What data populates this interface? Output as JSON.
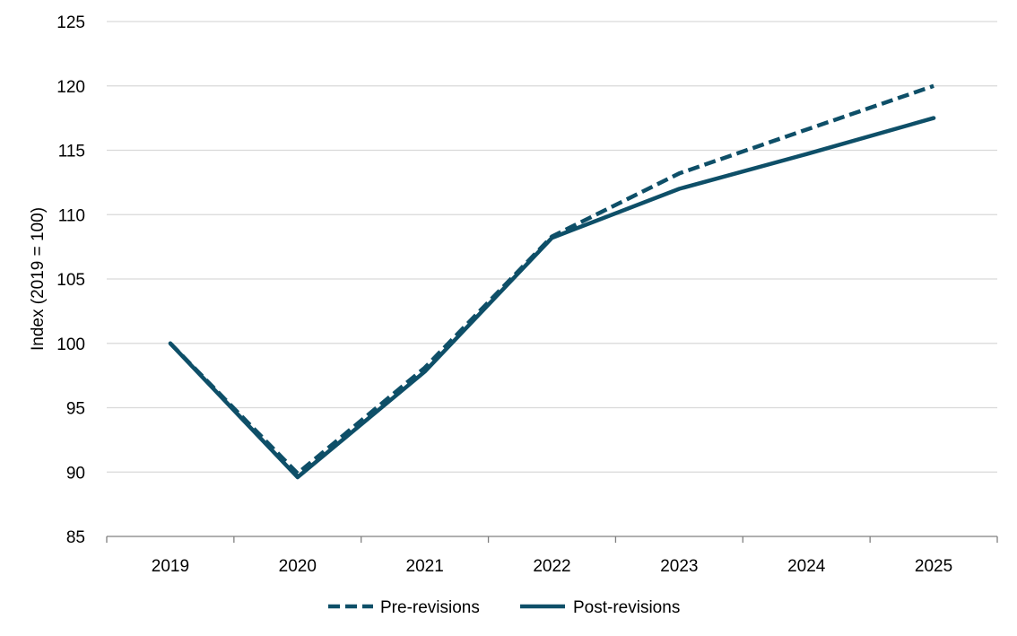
{
  "chart_data": {
    "type": "line",
    "title": "",
    "xlabel": "",
    "ylabel": "Index (2019 = 100)",
    "categories": [
      "2019",
      "2020",
      "2021",
      "2022",
      "2023",
      "2024",
      "2025"
    ],
    "ylim": [
      85,
      125
    ],
    "yticks": [
      "85",
      "90",
      "95",
      "100",
      "105",
      "110",
      "115",
      "120",
      "125"
    ],
    "grid": true,
    "legend_position": "bottom",
    "series": [
      {
        "name": "Pre-revisions",
        "style": "dashed",
        "color": "#0e4f68",
        "values": [
          100,
          89.9,
          98.1,
          108.3,
          113.2,
          116.6,
          120.0
        ]
      },
      {
        "name": "Post-revisions",
        "style": "solid",
        "color": "#0e4f68",
        "values": [
          100,
          89.6,
          97.8,
          108.2,
          112.0,
          114.7,
          117.5
        ]
      }
    ]
  }
}
